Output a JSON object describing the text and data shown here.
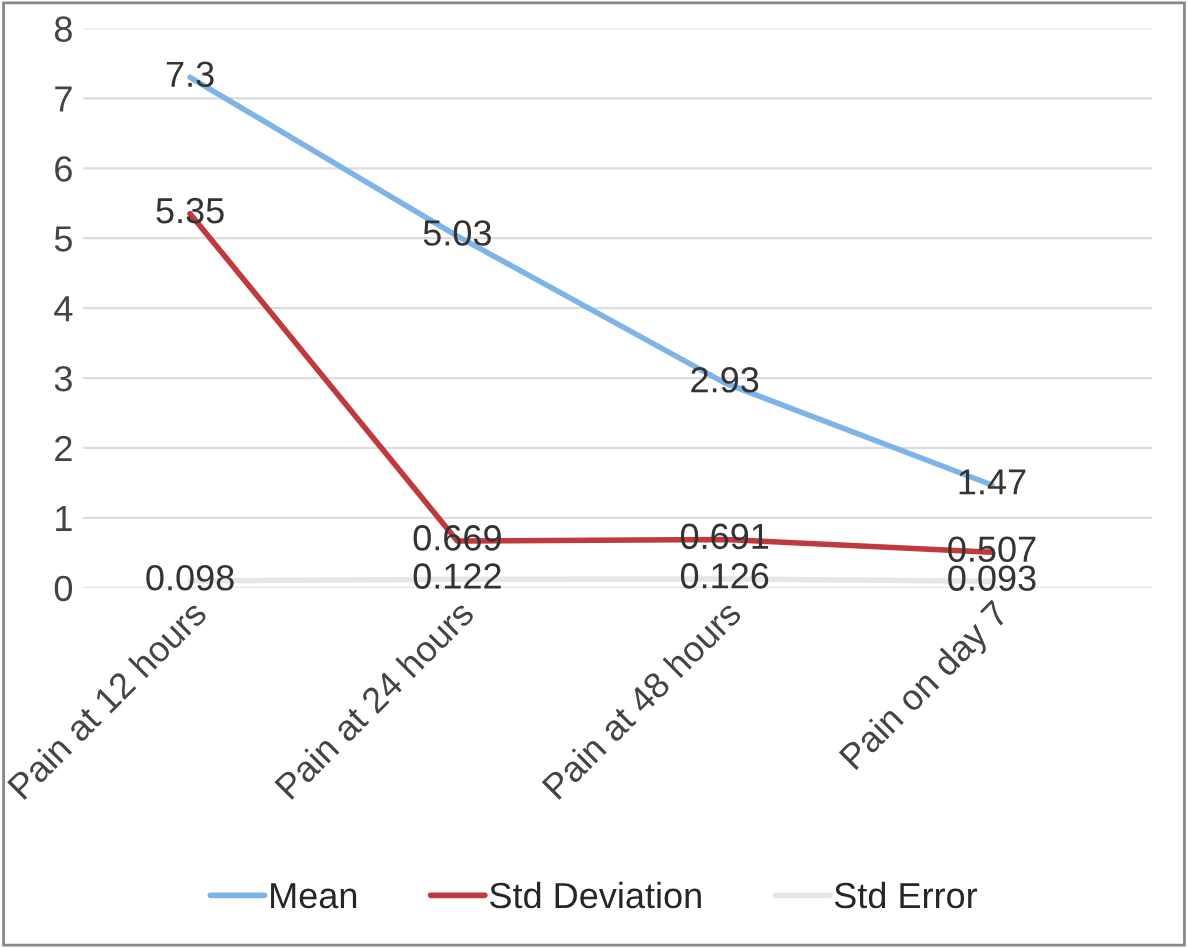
{
  "chart_data": {
    "type": "line",
    "categories": [
      "Pain at 12 hours",
      "Pain at 24 hours",
      "Pain at 48 hours",
      "Pain on day 7"
    ],
    "series": [
      {
        "name": "Mean",
        "color": "#7eb4e6",
        "values": [
          7.3,
          5.03,
          2.93,
          1.47
        ]
      },
      {
        "name": "Std Deviation",
        "color": "#c0393c",
        "values": [
          5.35,
          0.669,
          0.691,
          0.507
        ]
      },
      {
        "name": "Std Error",
        "color": "#e6e6e6",
        "values": [
          0.098,
          0.122,
          0.126,
          0.093
        ]
      }
    ],
    "ylim": [
      0,
      8
    ],
    "yticks": [
      0,
      1,
      2,
      3,
      4,
      5,
      6,
      7,
      8
    ],
    "grid": "y",
    "legend": "bottom",
    "data_labels": true,
    "marker": "none",
    "line_style": "solid"
  }
}
